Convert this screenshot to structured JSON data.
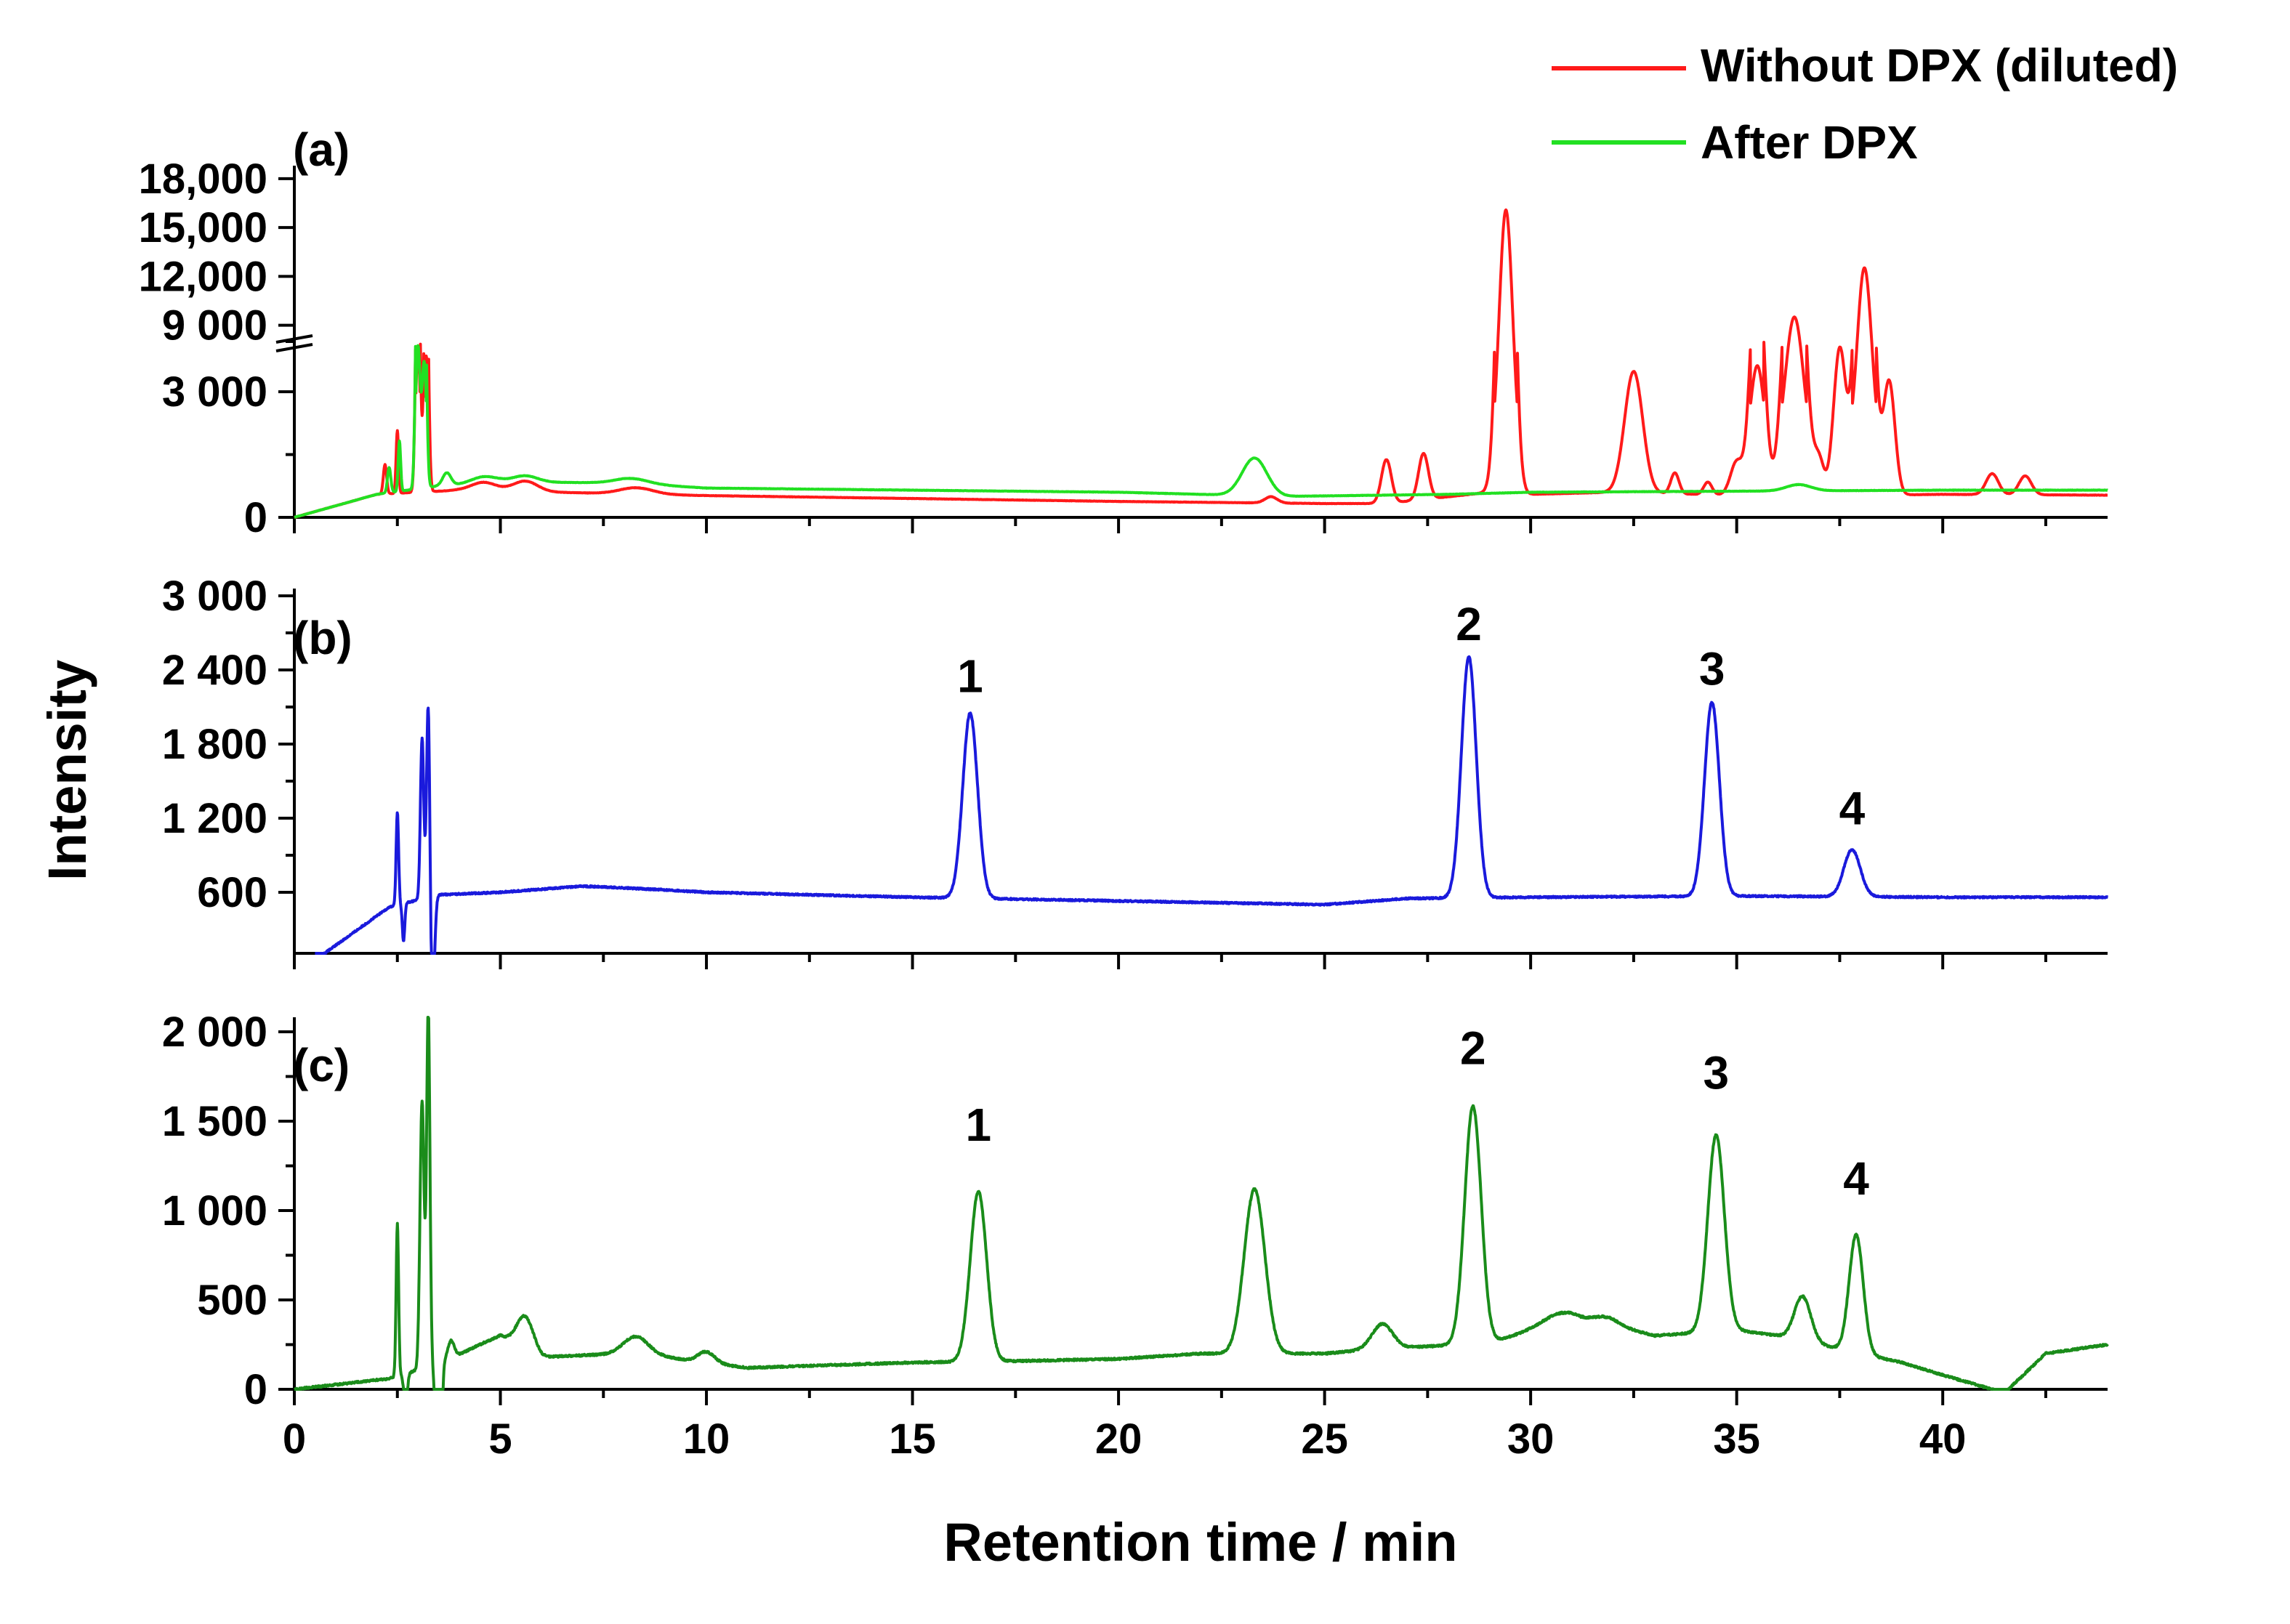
{
  "chart_data": {
    "type": "line",
    "xlabel": "Retention time / min",
    "ylabel": "Intensity",
    "xlim": [
      0,
      44
    ],
    "x_ticks": [
      0,
      5,
      10,
      15,
      20,
      25,
      30,
      35,
      40
    ],
    "x_tick_labels": [
      "0",
      "5",
      "10",
      "15",
      "20",
      "25",
      "30",
      "35",
      "40"
    ],
    "legend": [
      {
        "name": "Without DPX (diluted)",
        "color": "#ff1a1a"
      },
      {
        "name": "After DPX",
        "color": "#22e022"
      }
    ],
    "panels": [
      {
        "label": "(a)",
        "y_break": true,
        "y_ticks_lower": [
          0,
          3000
        ],
        "y_tick_labels_lower": [
          "0",
          "3 000"
        ],
        "y_ticks_upper": [
          9000,
          12000,
          15000,
          18000
        ],
        "y_tick_labels_upper": [
          "9 000",
          "12,000",
          "15,000",
          "18,000"
        ],
        "series": [
          {
            "name": "Without DPX (diluted)",
            "color": "#ff1a1a",
            "baseline": [
              [
                0,
                0
              ],
              [
                2,
                550
              ],
              [
                4,
                650
              ],
              [
                10,
                520
              ],
              [
                20,
                380
              ],
              [
                25,
                330
              ],
              [
                26.5,
                330
              ],
              [
                29,
                600
              ],
              [
                30,
                550
              ],
              [
                32,
                600
              ],
              [
                36,
                500
              ],
              [
                40,
                550
              ],
              [
                44,
                530
              ]
            ],
            "peaks": [
              [
                2.2,
                700,
                0.04
              ],
              [
                2.5,
                1500,
                0.03
              ],
              [
                3.0,
                7000,
                0.05
              ],
              [
                3.2,
                6500,
                0.05
              ],
              [
                4.6,
                200,
                0.3
              ],
              [
                5.6,
                250,
                0.3
              ],
              [
                8.3,
                150,
                0.4
              ],
              [
                23.7,
                150,
                0.15
              ],
              [
                26.5,
                1050,
                0.12
              ],
              [
                27.4,
                1100,
                0.12
              ],
              [
                29.4,
                15500,
                0.16
              ],
              [
                32.5,
                2900,
                0.22
              ],
              [
                33.5,
                500,
                0.1
              ],
              [
                34.3,
                300,
                0.1
              ],
              [
                35.0,
                800,
                0.15
              ],
              [
                35.5,
                6000,
                0.16
              ],
              [
                36.4,
                9000,
                0.22
              ],
              [
                37.0,
                800,
                0.12
              ],
              [
                37.5,
                3500,
                0.15
              ],
              [
                38.1,
                12000,
                0.18
              ],
              [
                38.7,
                2700,
                0.14
              ],
              [
                41.2,
                500,
                0.15
              ],
              [
                42.0,
                450,
                0.15
              ]
            ]
          },
          {
            "name": "After DPX",
            "color": "#22e022",
            "baseline": [
              [
                0,
                0
              ],
              [
                2,
                550
              ],
              [
                3.5,
                750
              ],
              [
                5,
                850
              ],
              [
                8,
                820
              ],
              [
                10,
                700
              ],
              [
                20,
                600
              ],
              [
                24,
                500
              ],
              [
                28,
                550
              ],
              [
                30,
                600
              ],
              [
                40,
                650
              ],
              [
                44,
                650
              ]
            ],
            "peaks": [
              [
                2.3,
                600,
                0.04
              ],
              [
                2.55,
                1200,
                0.03
              ],
              [
                3.0,
                7000,
                0.05
              ],
              [
                3.15,
                6000,
                0.05
              ],
              [
                3.7,
                300,
                0.1
              ],
              [
                4.6,
                150,
                0.3
              ],
              [
                5.6,
                150,
                0.3
              ],
              [
                8.2,
                120,
                0.4
              ],
              [
                23.3,
                900,
                0.3
              ],
              [
                36.5,
                150,
                0.3
              ]
            ]
          }
        ]
      },
      {
        "label": "(b)",
        "y_ticks": [
          600,
          1200,
          1800,
          2400,
          3000
        ],
        "y_tick_labels": [
          "600",
          "1 200",
          "1 800",
          "2 400",
          "3 000"
        ],
        "peak_labels": [
          {
            "text": "1",
            "x": 16.4,
            "y": 2220
          },
          {
            "text": "2",
            "x": 28.5,
            "y": 2640
          },
          {
            "text": "3",
            "x": 34.4,
            "y": 2280
          },
          {
            "text": "4",
            "x": 37.8,
            "y": 1150
          }
        ],
        "series": [
          {
            "name": "(b)",
            "color": "#1a1adc",
            "baseline": [
              [
                0.5,
                50
              ],
              [
                2.3,
                480
              ],
              [
                3.5,
                580
              ],
              [
                5,
                600
              ],
              [
                7,
                650
              ],
              [
                9,
                620
              ],
              [
                10,
                600
              ],
              [
                15,
                560
              ],
              [
                20,
                530
              ],
              [
                25,
                500
              ],
              [
                27,
                550
              ],
              [
                30,
                560
              ],
              [
                35,
                570
              ],
              [
                40,
                560
              ],
              [
                44,
                560
              ]
            ],
            "peaks": [
              [
                2.5,
                750,
                0.03
              ],
              [
                2.65,
                -300,
                0.03
              ],
              [
                3.1,
                1300,
                0.04
              ],
              [
                3.25,
                1650,
                0.04
              ],
              [
                3.35,
                -900,
                0.05
              ],
              [
                16.4,
                1500,
                0.18
              ],
              [
                28.5,
                1950,
                0.18
              ],
              [
                34.4,
                1570,
                0.18
              ],
              [
                37.8,
                380,
                0.2
              ]
            ]
          }
        ]
      },
      {
        "label": "(c)",
        "y_ticks": [
          0,
          500,
          1000,
          1500,
          2000
        ],
        "y_tick_labels": [
          "0",
          "500",
          "1 000",
          "1 500",
          "2 000"
        ],
        "peak_labels": [
          {
            "text": "1",
            "x": 16.6,
            "y": 1390
          },
          {
            "text": "2",
            "x": 28.6,
            "y": 1820
          },
          {
            "text": "3",
            "x": 34.5,
            "y": 1680
          },
          {
            "text": "4",
            "x": 37.9,
            "y": 1090
          }
        ],
        "series": [
          {
            "name": "(c)",
            "color": "#1a8c1a",
            "baseline": [
              [
                0,
                0
              ],
              [
                2.3,
                60
              ],
              [
                3.6,
                150
              ],
              [
                4.5,
                250
              ],
              [
                5,
                300
              ],
              [
                6,
                180
              ],
              [
                8,
                200
              ],
              [
                9,
                180
              ],
              [
                10,
                150
              ],
              [
                11,
                120
              ],
              [
                15,
                150
              ],
              [
                18,
                160
              ],
              [
                20,
                170
              ],
              [
                22,
                200
              ],
              [
                25,
                200
              ],
              [
                26,
                220
              ],
              [
                29,
                260
              ],
              [
                30,
                330
              ],
              [
                31,
                380
              ],
              [
                32,
                360
              ],
              [
                33,
                300
              ],
              [
                35,
                330
              ],
              [
                36,
                300
              ],
              [
                38,
                200
              ],
              [
                39,
                150
              ],
              [
                40,
                80
              ],
              [
                41.5,
                -20
              ],
              [
                42.5,
                200
              ],
              [
                44,
                250
              ]
            ],
            "peaks": [
              [
                2.5,
                850,
                0.03
              ],
              [
                2.7,
                -200,
                0.04
              ],
              [
                3.1,
                1500,
                0.05
              ],
              [
                3.25,
                2000,
                0.04
              ],
              [
                3.5,
                -1800,
                0.05
              ],
              [
                3.8,
                100,
                0.08
              ],
              [
                5.6,
                180,
                0.2
              ],
              [
                8.3,
                100,
                0.3
              ],
              [
                10.0,
                60,
                0.2
              ],
              [
                16.6,
                950,
                0.2
              ],
              [
                23.3,
                920,
                0.25
              ],
              [
                26.4,
                140,
                0.25
              ],
              [
                28.6,
                1330,
                0.2
              ],
              [
                30.7,
                60,
                0.4
              ],
              [
                31.8,
                40,
                0.3
              ],
              [
                34.5,
                1100,
                0.2
              ],
              [
                36.6,
                250,
                0.2
              ],
              [
                37.9,
                660,
                0.17
              ]
            ]
          }
        ]
      }
    ]
  }
}
